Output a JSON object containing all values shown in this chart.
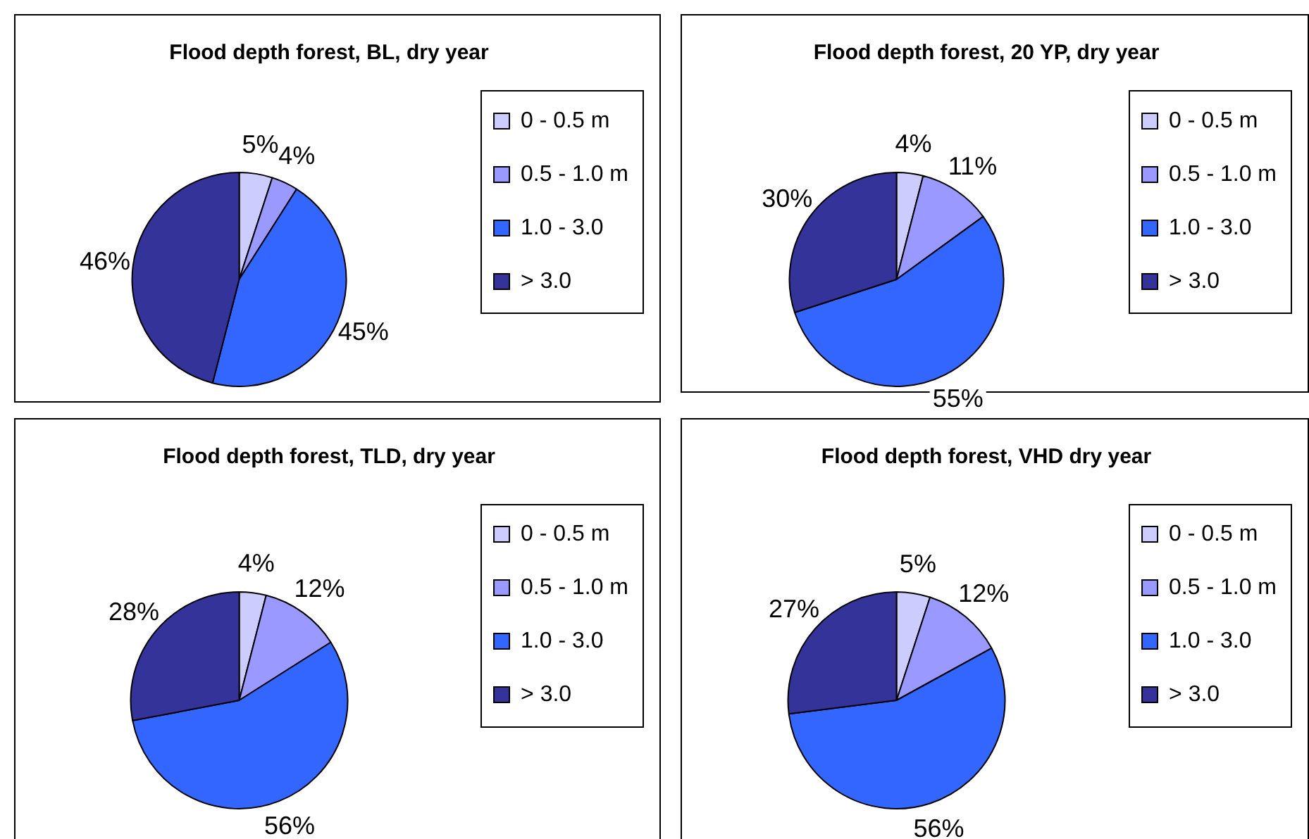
{
  "chart_data": [
    {
      "type": "pie",
      "title": "Flood depth forest, BL, dry year",
      "categories": [
        "0 - 0.5 m",
        "0.5 - 1.0 m",
        "1.0 - 3.0",
        "> 3.0"
      ],
      "values": [
        5,
        4,
        45,
        46
      ],
      "colors": [
        "#ccccff",
        "#9999ff",
        "#3366ff",
        "#333399"
      ],
      "value_labels": [
        "5%",
        "4%",
        "45%",
        "46%"
      ],
      "legend": "right"
    },
    {
      "type": "pie",
      "title": "Flood depth forest, 20 YP, dry year",
      "categories": [
        "0 - 0.5 m",
        "0.5 - 1.0 m",
        "1.0 - 3.0",
        "> 3.0"
      ],
      "values": [
        4,
        11,
        55,
        30
      ],
      "colors": [
        "#ccccff",
        "#9999ff",
        "#3366ff",
        "#333399"
      ],
      "value_labels": [
        "4%",
        "11%",
        "55%",
        "30%"
      ],
      "legend": "right"
    },
    {
      "type": "pie",
      "title": "Flood depth forest, TLD, dry year",
      "categories": [
        "0 - 0.5 m",
        "0.5 - 1.0 m",
        "1.0 - 3.0",
        "> 3.0"
      ],
      "values": [
        4,
        12,
        56,
        28
      ],
      "colors": [
        "#ccccff",
        "#9999ff",
        "#3366ff",
        "#333399"
      ],
      "value_labels": [
        "4%",
        "12%",
        "56%",
        "28%"
      ],
      "legend": "right"
    },
    {
      "type": "pie",
      "title": "Flood depth forest, VHD dry year",
      "categories": [
        "0 - 0.5 m",
        "0.5 - 1.0 m",
        "1.0 - 3.0",
        "> 3.0"
      ],
      "values": [
        5,
        12,
        56,
        27
      ],
      "colors": [
        "#ccccff",
        "#9999ff",
        "#3366ff",
        "#333399"
      ],
      "value_labels": [
        "5%",
        "12%",
        "56%",
        "27%"
      ],
      "legend": "right"
    }
  ]
}
